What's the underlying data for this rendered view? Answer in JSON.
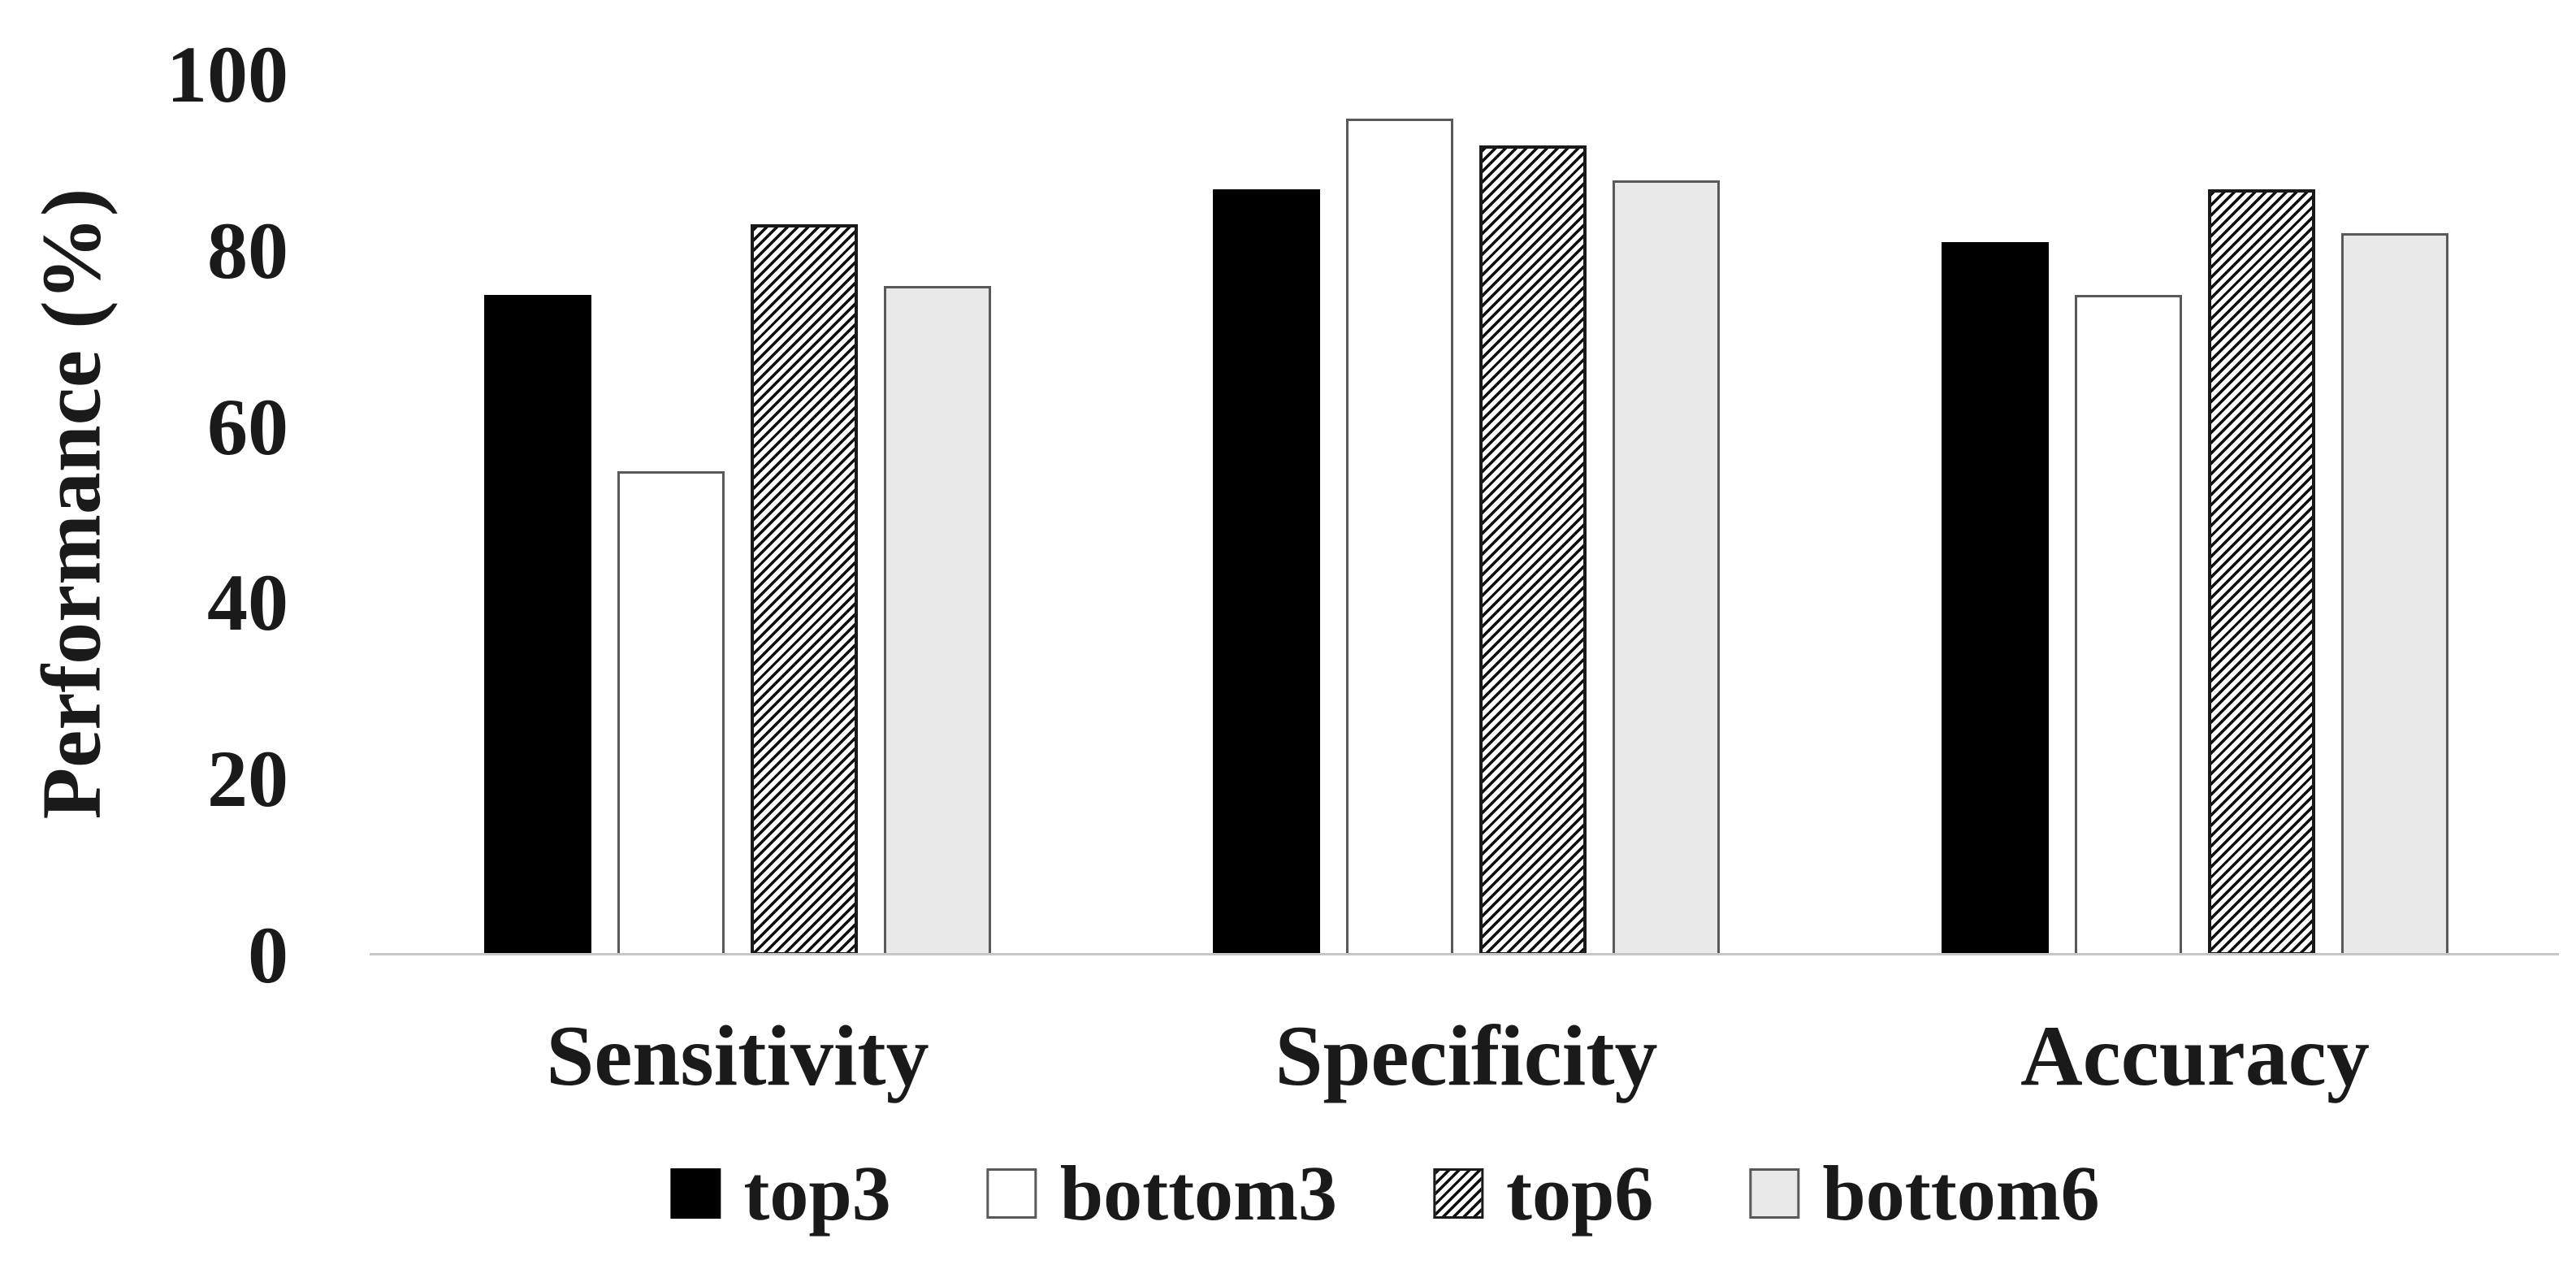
{
  "chart_data": {
    "type": "bar",
    "title": "",
    "xlabel": "",
    "ylabel": "Performance (%)",
    "ylim": [
      0,
      100
    ],
    "yticks": [
      0,
      20,
      40,
      60,
      80,
      100
    ],
    "grid": false,
    "legend_position": "bottom",
    "categories": [
      "Sensitivity",
      "Specificity",
      "Accuracy"
    ],
    "series": [
      {
        "name": "top3",
        "style": "solid-black",
        "fill": "#000000",
        "values": [
          75,
          87,
          81
        ]
      },
      {
        "name": "bottom3",
        "style": "white-outline",
        "fill": "#ffffff",
        "values": [
          55,
          95,
          75
        ]
      },
      {
        "name": "top6",
        "style": "diagonal-hatch",
        "fill": "hatch-diagonal",
        "values": [
          83,
          92,
          87
        ]
      },
      {
        "name": "bottom6",
        "style": "light-gray",
        "fill": "#e9e9e9",
        "values": [
          76,
          88,
          82
        ]
      }
    ]
  },
  "colors": {
    "background": "#ffffff",
    "text": "#1a1a1a",
    "axis_line": "#c6c6c6",
    "bar_outline_gray": "#595959",
    "bar_outline_dark": "#1a1a1a"
  }
}
